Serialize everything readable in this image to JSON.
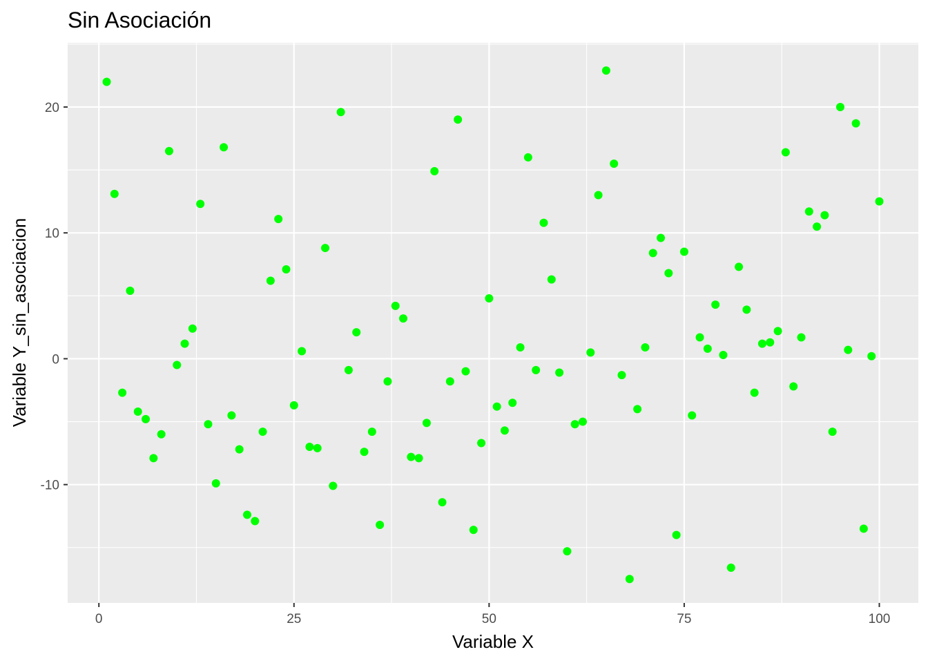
{
  "chart_data": {
    "type": "scatter",
    "title": "Sin Asociación",
    "xlabel": "Variable X",
    "ylabel": "Variable Y_sin_asociacion",
    "xlim": [
      -4,
      105
    ],
    "ylim": [
      -19.4,
      25.1
    ],
    "x_ticks": [
      0,
      25,
      50,
      75,
      100
    ],
    "y_ticks": [
      -10,
      0,
      10,
      20
    ],
    "grid": true,
    "legend": "none",
    "point_color": "#00ff00",
    "panel_background": "#ebebeb",
    "x": [
      1,
      2,
      3,
      4,
      5,
      6,
      7,
      8,
      9,
      10,
      11,
      12,
      13,
      14,
      15,
      16,
      17,
      18,
      19,
      20,
      21,
      22,
      23,
      24,
      25,
      26,
      27,
      28,
      29,
      30,
      31,
      32,
      33,
      34,
      35,
      36,
      37,
      38,
      39,
      40,
      41,
      42,
      43,
      44,
      45,
      46,
      47,
      48,
      49,
      50,
      51,
      52,
      53,
      54,
      55,
      56,
      57,
      58,
      59,
      60,
      61,
      62,
      63,
      64,
      65,
      66,
      67,
      68,
      69,
      70,
      71,
      72,
      73,
      74,
      75,
      76,
      77,
      78,
      79,
      80,
      81,
      82,
      83,
      84,
      85,
      86,
      87,
      88,
      89,
      90,
      91,
      92,
      93,
      94,
      95,
      96,
      97,
      98,
      99,
      100
    ],
    "y": [
      22.0,
      13.1,
      -2.7,
      5.4,
      -4.2,
      -4.8,
      -7.9,
      -6.0,
      16.5,
      -0.5,
      1.2,
      2.4,
      12.3,
      -5.2,
      -9.9,
      16.8,
      -4.5,
      -7.2,
      -12.4,
      -12.9,
      -5.8,
      6.2,
      11.1,
      7.1,
      -3.7,
      0.6,
      -7.0,
      -7.1,
      8.8,
      -10.1,
      19.6,
      -0.9,
      2.1,
      -7.4,
      -5.8,
      -13.2,
      -1.8,
      4.2,
      3.2,
      -7.8,
      -7.9,
      -5.1,
      14.9,
      -11.4,
      -1.8,
      19.0,
      -1.0,
      -13.6,
      -6.7,
      4.8,
      -3.8,
      -5.7,
      -3.5,
      0.9,
      16.0,
      -0.9,
      10.8,
      6.3,
      -1.1,
      -15.3,
      -5.2,
      -5.0,
      0.5,
      13.0,
      22.9,
      15.5,
      -1.3,
      -17.5,
      -4.0,
      0.9,
      8.4,
      9.6,
      6.8,
      -14.0,
      8.5,
      -4.5,
      1.7,
      0.8,
      4.3,
      0.3,
      -16.6,
      7.3,
      3.9,
      -2.7,
      1.2,
      1.3,
      2.2,
      16.4,
      -2.2,
      1.7,
      11.7,
      10.5,
      11.4,
      -5.8,
      20.0,
      0.7,
      18.7,
      -13.5,
      0.2,
      12.5
    ]
  }
}
